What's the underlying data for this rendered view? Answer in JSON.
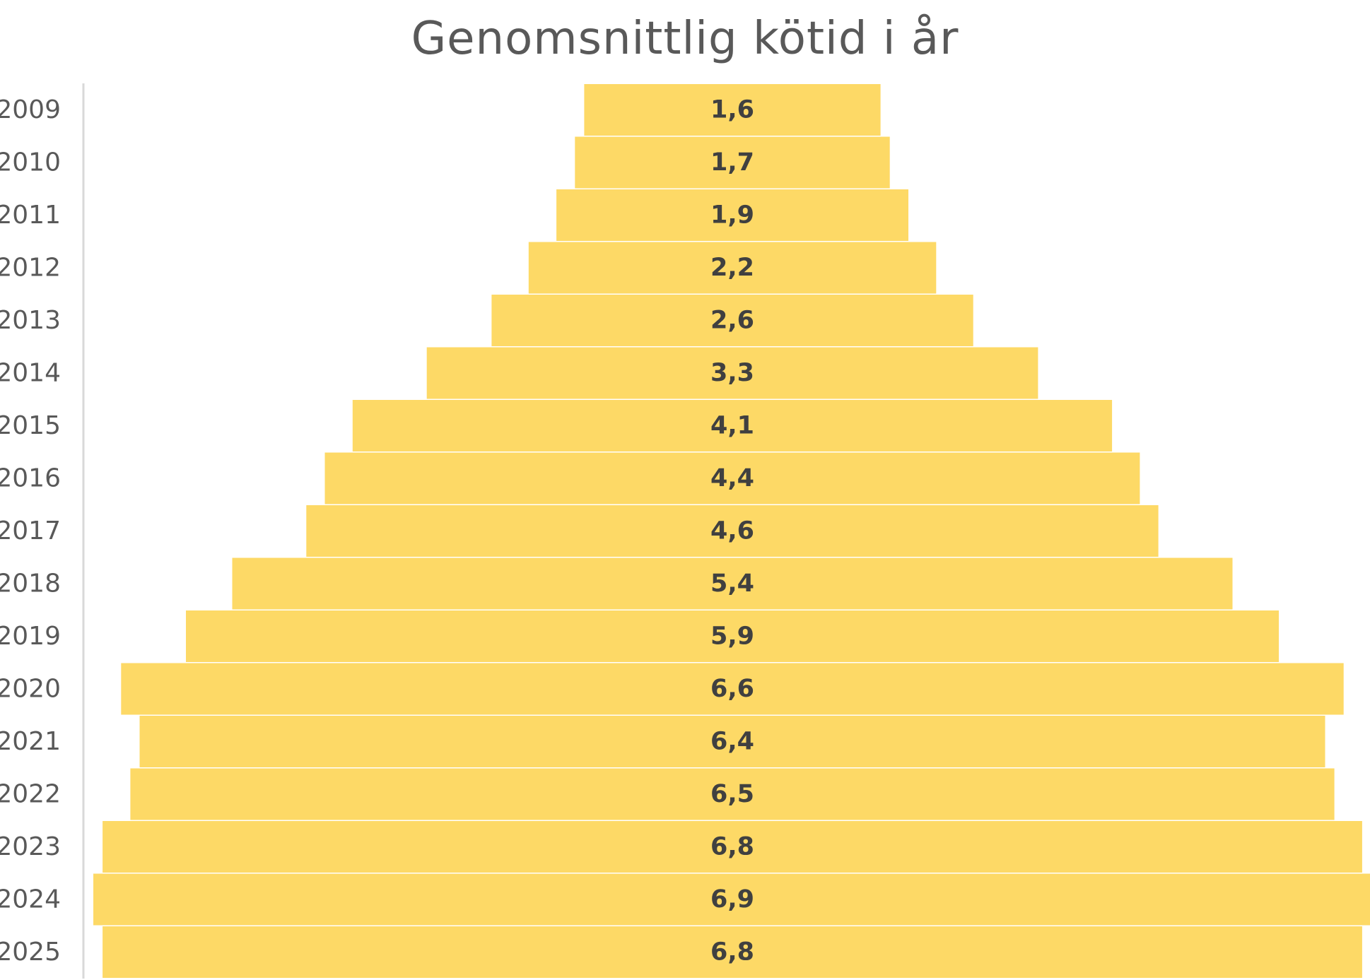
{
  "chart_data": {
    "type": "bar",
    "orientation": "horizontal",
    "layout": "centered-funnel",
    "title": "Genomsnittlig kötid i år",
    "xlabel": "",
    "ylabel": "",
    "grid": false,
    "legend": "none",
    "categories": [
      "2009",
      "2010",
      "2011",
      "2012",
      "2013",
      "2014",
      "2015",
      "2016",
      "2017",
      "2018",
      "2019",
      "2020",
      "2021",
      "2022",
      "2023",
      "2024",
      "2025"
    ],
    "values": [
      1.6,
      1.7,
      1.9,
      2.2,
      2.6,
      3.3,
      4.1,
      4.4,
      4.6,
      5.4,
      5.9,
      6.6,
      6.4,
      6.5,
      6.8,
      6.9,
      6.8
    ],
    "data_labels": [
      "1,6",
      "1,7",
      "1,9",
      "2,2",
      "2,6",
      "3,3",
      "4,1",
      "4,4",
      "4,6",
      "5,4",
      "5,9",
      "6,6",
      "6,4",
      "6,5",
      "6,8",
      "6,9",
      "6,8"
    ],
    "xlim": [
      0,
      6.9
    ],
    "colors": {
      "bar": "#FDD966",
      "bar_label": "#404040",
      "category_label": "#595959",
      "title": "#595959",
      "axis_line": "#D9D9D9"
    }
  }
}
